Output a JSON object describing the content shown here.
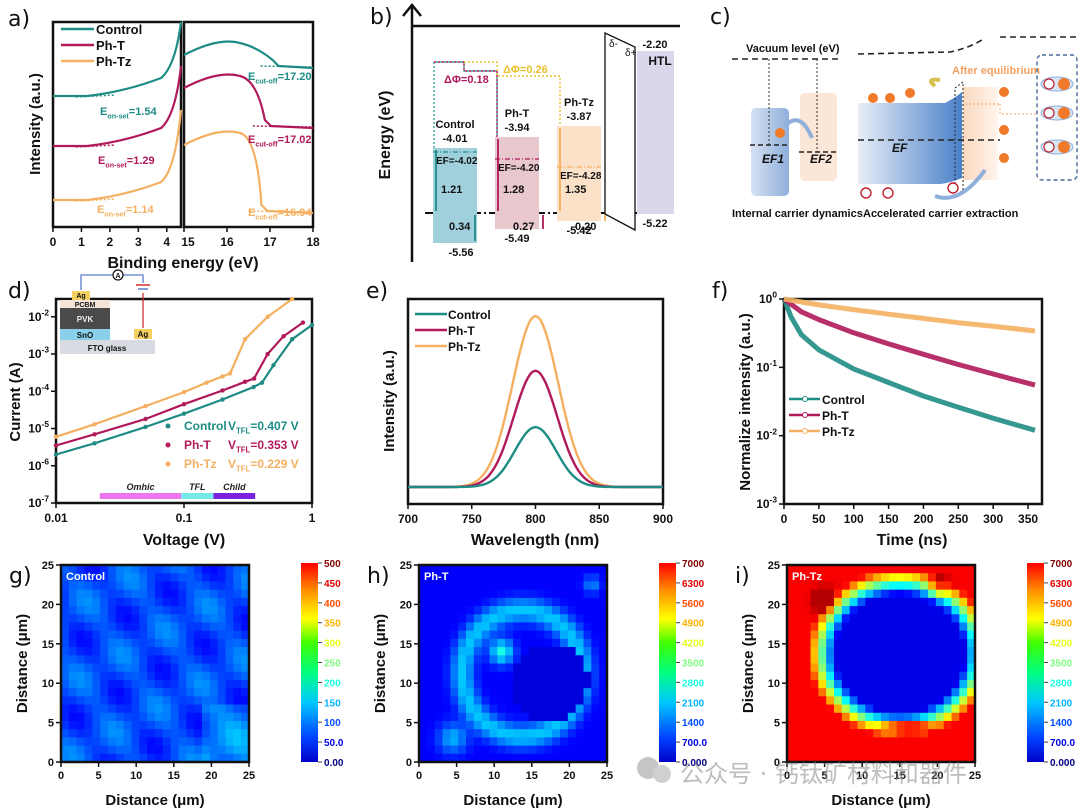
{
  "colors": {
    "control": "#1e8c84",
    "pht": "#b0195a",
    "phtz": "#f4b060",
    "axis": "#111111",
    "htl": "#d8d8ea"
  },
  "legend": [
    "Control",
    "Ph-T",
    "Ph-Tz"
  ],
  "chart_data": [
    {
      "id": "a",
      "panel_label": "a)",
      "type": "line",
      "title": "",
      "xlabel": "Binding energy (eV)",
      "ylabel": "Intensity (a.u.)",
      "left": {
        "xlim": [
          0,
          4.5
        ],
        "xticks": [
          "0",
          "1",
          "2",
          "3",
          "4"
        ]
      },
      "right": {
        "xlim": [
          15,
          18
        ],
        "xticks": [
          "15",
          "16",
          "17",
          "18"
        ]
      },
      "series": [
        {
          "name": "Control",
          "onset_label": "E",
          "onset_sub": "on-set",
          "onset_value": "=1.54",
          "cutoff_label": "E",
          "cutoff_sub": "cut-off",
          "cutoff_value": "=17.20"
        },
        {
          "name": "Ph-T",
          "onset_label": "E",
          "onset_sub": "on-set",
          "onset_value": "=1.29",
          "cutoff_label": "E",
          "cutoff_sub": "cut-off",
          "cutoff_value": "=17.02"
        },
        {
          "name": "Ph-Tz",
          "onset_label": "E",
          "onset_sub": "on-set",
          "onset_value": "=1.14",
          "cutoff_label": "E",
          "cutoff_sub": "cut-off",
          "cutoff_value": "=16.94"
        }
      ]
    },
    {
      "id": "b",
      "panel_label": "b)",
      "type": "diagram",
      "ylabel": "Energy (eV)",
      "delta_phi": [
        "ΔΦ=0.18",
        "ΔΦ=0.26"
      ],
      "bands": [
        {
          "name": "Control",
          "cbm": "-4.01",
          "ef": "EF=-4.02",
          "gap_upper": "1.21",
          "gap_lower": "0.34",
          "vbm": "-5.56"
        },
        {
          "name": "Ph-T",
          "cbm": "-3.94",
          "ef": "EF=-4.20",
          "gap_upper": "1.28",
          "gap_lower": "0.27",
          "vbm": "-5.49"
        },
        {
          "name": "Ph-Tz",
          "cbm": "-3.87",
          "ef": "EF=-4.28",
          "gap_upper": "1.35",
          "gap_lower": "0.20",
          "vbm": "-5.42"
        },
        {
          "name": "HTL",
          "cbm": "-2.20",
          "vbm": "-5.22"
        }
      ],
      "dipole": [
        "δ-",
        "δ+"
      ]
    },
    {
      "id": "c",
      "panel_label": "c)",
      "type": "diagram",
      "vacuum_level": "Vacuum level (eV)",
      "ef1": "EF1",
      "ef2": "EF2",
      "ef": "EF",
      "after_equilibrium": "After equilibrium",
      "caption_left": "Internal carrier dynamics",
      "caption_right": "Accelerated carrier extraction",
      "electron": "e",
      "hole": "h+"
    },
    {
      "id": "d",
      "panel_label": "d)",
      "type": "scatter",
      "xscale": "log",
      "yscale": "log",
      "xlabel": "Voltage (V)",
      "ylabel": "Current (A)",
      "xlim": [
        0.01,
        1
      ],
      "ylim": [
        1e-07,
        0.03
      ],
      "xticks": [
        "0.01",
        "0.1",
        "1"
      ],
      "yticks": [
        "10-7",
        "10-6",
        "10-5",
        "10-4",
        "10-3",
        "10-2"
      ],
      "series": [
        {
          "name": "Control",
          "vtfl": "V",
          "vtfl_sub": "TFL",
          "vtfl_value": "=0.407 V",
          "x": [
            0.01,
            0.02,
            0.05,
            0.1,
            0.2,
            0.35,
            0.407,
            0.5,
            0.7,
            1.0
          ],
          "y": [
            2e-06,
            4e-06,
            1.1e-05,
            2.5e-05,
            6e-05,
            0.00013,
            0.00017,
            0.0005,
            0.0025,
            0.006
          ]
        },
        {
          "name": "Ph-T",
          "vtfl": "V",
          "vtfl_sub": "TFL",
          "vtfl_value": "=0.353 V",
          "x": [
            0.01,
            0.02,
            0.05,
            0.1,
            0.2,
            0.3,
            0.353,
            0.45,
            0.6,
            0.85
          ],
          "y": [
            3.5e-06,
            7e-06,
            1.8e-05,
            4.5e-05,
            0.000105,
            0.00018,
            0.00022,
            0.001,
            0.003,
            0.007
          ]
        },
        {
          "name": "Ph-Tz",
          "vtfl": "V",
          "vtfl_sub": "TFL",
          "vtfl_value": "=0.229 V",
          "x": [
            0.01,
            0.02,
            0.05,
            0.1,
            0.15,
            0.2,
            0.229,
            0.3,
            0.45,
            0.7
          ],
          "y": [
            6e-06,
            1.3e-05,
            4e-05,
            9.5e-05,
            0.00017,
            0.00025,
            0.0003,
            0.0025,
            0.01,
            0.03
          ]
        }
      ],
      "regimes": [
        {
          "name": "Omhic",
          "color": "#ee77ee",
          "range": [
            0.022,
            0.095
          ]
        },
        {
          "name": "TFL",
          "color": "#77e8e8",
          "range": [
            0.095,
            0.17
          ]
        },
        {
          "name": "Child",
          "color": "#7a22e0",
          "range": [
            0.17,
            0.36
          ]
        }
      ],
      "inset": {
        "top_electrode": "Ag",
        "layers": [
          "PCBM",
          "PVK",
          "SnO2",
          "FTO glass"
        ],
        "side_electrode": "Ag",
        "meter": "A"
      }
    },
    {
      "id": "e",
      "panel_label": "e)",
      "type": "line",
      "xlabel": "Wavelength (nm)",
      "ylabel": "Intensity (a.u.)",
      "xlim": [
        700,
        900
      ],
      "xticks": [
        "700",
        "750",
        "800",
        "850",
        "900"
      ],
      "series": [
        {
          "name": "Control",
          "peak_x": 800,
          "peak_rel": 0.35,
          "fwhm": 38
        },
        {
          "name": "Ph-T",
          "peak_x": 800,
          "peak_rel": 0.68,
          "fwhm": 40
        },
        {
          "name": "Ph-Tz",
          "peak_x": 800,
          "peak_rel": 1.0,
          "fwhm": 42
        }
      ]
    },
    {
      "id": "f",
      "panel_label": "f)",
      "type": "line",
      "yscale": "log",
      "xlabel": "Time (ns)",
      "ylabel": "Normalize intensity (a.u.)",
      "xlim": [
        0,
        370
      ],
      "ylim": [
        0.001,
        1
      ],
      "xticks": [
        "0",
        "50",
        "100",
        "150",
        "200",
        "250",
        "300",
        "350"
      ],
      "yticks": [
        "10-3",
        "10-2",
        "10-1",
        "100"
      ],
      "series": [
        {
          "name": "Control",
          "x": [
            0,
            10,
            25,
            50,
            100,
            150,
            200,
            250,
            300,
            360
          ],
          "y": [
            1,
            0.55,
            0.3,
            0.18,
            0.095,
            0.06,
            0.038,
            0.026,
            0.018,
            0.012
          ]
        },
        {
          "name": "Ph-T",
          "x": [
            0,
            25,
            50,
            100,
            150,
            200,
            250,
            300,
            360
          ],
          "y": [
            1,
            0.65,
            0.5,
            0.32,
            0.22,
            0.155,
            0.11,
            0.08,
            0.055
          ]
        },
        {
          "name": "Ph-Tz",
          "x": [
            0,
            50,
            100,
            150,
            200,
            250,
            300,
            360
          ],
          "y": [
            1,
            0.82,
            0.7,
            0.6,
            0.52,
            0.45,
            0.4,
            0.34
          ]
        }
      ]
    },
    {
      "id": "g",
      "panel_label": "g)",
      "type": "heatmap",
      "tag": "Control",
      "xlabel": "Distance (μm)",
      "ylabel": "Distance (μm)",
      "xlim": [
        0,
        25
      ],
      "ylim": [
        0,
        25
      ],
      "ticks": [
        "0",
        "5",
        "10",
        "15",
        "20",
        "25"
      ],
      "colorbar": [
        "500",
        "450",
        "400",
        "350",
        "300",
        "250",
        "200",
        "150",
        "100",
        "50.0",
        "0.00"
      ],
      "clim": [
        0,
        500
      ]
    },
    {
      "id": "h",
      "panel_label": "h)",
      "type": "heatmap",
      "tag": "Ph-T",
      "xlabel": "Distance (μm)",
      "ylabel": "Distance (μm)",
      "xlim": [
        0,
        25
      ],
      "ylim": [
        0,
        25
      ],
      "ticks": [
        "0",
        "5",
        "10",
        "15",
        "20",
        "25"
      ],
      "colorbar": [
        "7000",
        "6300",
        "5600",
        "4900",
        "4200",
        "3500",
        "2800",
        "2100",
        "1400",
        "700.0",
        "0.000"
      ],
      "clim": [
        0,
        7000
      ]
    },
    {
      "id": "i",
      "panel_label": "i)",
      "type": "heatmap",
      "tag": "Ph-Tz",
      "xlabel": "Distance (μm)",
      "ylabel": "Distance (μm)",
      "xlim": [
        0,
        25
      ],
      "ylim": [
        0,
        25
      ],
      "ticks": [
        "0",
        "5",
        "10",
        "15",
        "20",
        "25"
      ],
      "colorbar": [
        "7000",
        "6300",
        "5600",
        "4900",
        "4200",
        "3500",
        "2800",
        "2100",
        "1400",
        "700.0",
        "0.000"
      ],
      "clim": [
        0,
        7000
      ]
    }
  ],
  "watermark": "公众号 · 钙钛矿材料和器件"
}
